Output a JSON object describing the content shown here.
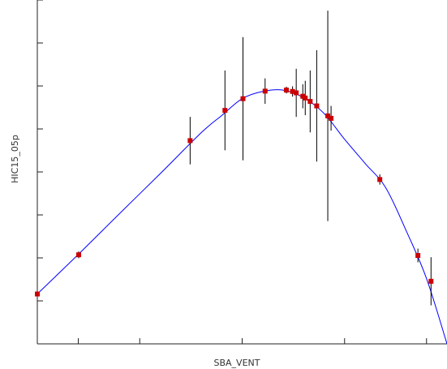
{
  "chart_data": {
    "type": "scatter",
    "title": "",
    "xlabel": "SBA_VENT",
    "ylabel": "HIC15_05p",
    "xlim": [
      0,
      1
    ],
    "ylim": [
      0,
      1
    ],
    "grid": false,
    "ticks_labeled": false,
    "x_ticks": [
      0.0,
      0.1,
      0.25,
      0.5,
      0.75,
      0.95
    ],
    "y_ticks": [
      0.0,
      0.125,
      0.25,
      0.375,
      0.5,
      0.625,
      0.75,
      0.875,
      1.0
    ],
    "series": [
      {
        "kind": "points_with_error_bars",
        "color": "#cc0000",
        "points": [
          {
            "x": 0.0,
            "y": 0.145,
            "err": 0.0
          },
          {
            "x": 0.101,
            "y": 0.259,
            "err": 0.01
          },
          {
            "x": 0.373,
            "y": 0.591,
            "err": 0.069
          },
          {
            "x": 0.458,
            "y": 0.679,
            "err": 0.116
          },
          {
            "x": 0.502,
            "y": 0.713,
            "err": 0.179
          },
          {
            "x": 0.556,
            "y": 0.735,
            "err": 0.037
          },
          {
            "x": 0.608,
            "y": 0.738,
            "err": 0.01
          },
          {
            "x": 0.623,
            "y": 0.734,
            "err": 0.015
          },
          {
            "x": 0.632,
            "y": 0.73,
            "err": 0.07
          },
          {
            "x": 0.648,
            "y": 0.72,
            "err": 0.035
          },
          {
            "x": 0.654,
            "y": 0.715,
            "err": 0.05
          },
          {
            "x": 0.666,
            "y": 0.705,
            "err": 0.09
          },
          {
            "x": 0.682,
            "y": 0.692,
            "err": 0.162
          },
          {
            "x": 0.709,
            "y": 0.663,
            "err": 0.306
          },
          {
            "x": 0.717,
            "y": 0.656,
            "err": 0.036
          },
          {
            "x": 0.836,
            "y": 0.478,
            "err": 0.015
          },
          {
            "x": 0.929,
            "y": 0.257,
            "err": 0.02
          },
          {
            "x": 0.961,
            "y": 0.182,
            "err": 0.07
          }
        ]
      },
      {
        "kind": "fitted_curve",
        "color": "#0000ff",
        "x": [
          0.0,
          0.1,
          0.2,
          0.3,
          0.4,
          0.45,
          0.5,
          0.55,
          0.6,
          0.65,
          0.7,
          0.75,
          0.8,
          0.85,
          0.9,
          0.95,
          1.0
        ],
        "y": [
          0.145,
          0.26,
          0.378,
          0.495,
          0.614,
          0.664,
          0.713,
          0.734,
          0.738,
          0.716,
          0.67,
          0.595,
          0.525,
          0.455,
          0.33,
          0.19,
          0.0
        ]
      }
    ]
  }
}
